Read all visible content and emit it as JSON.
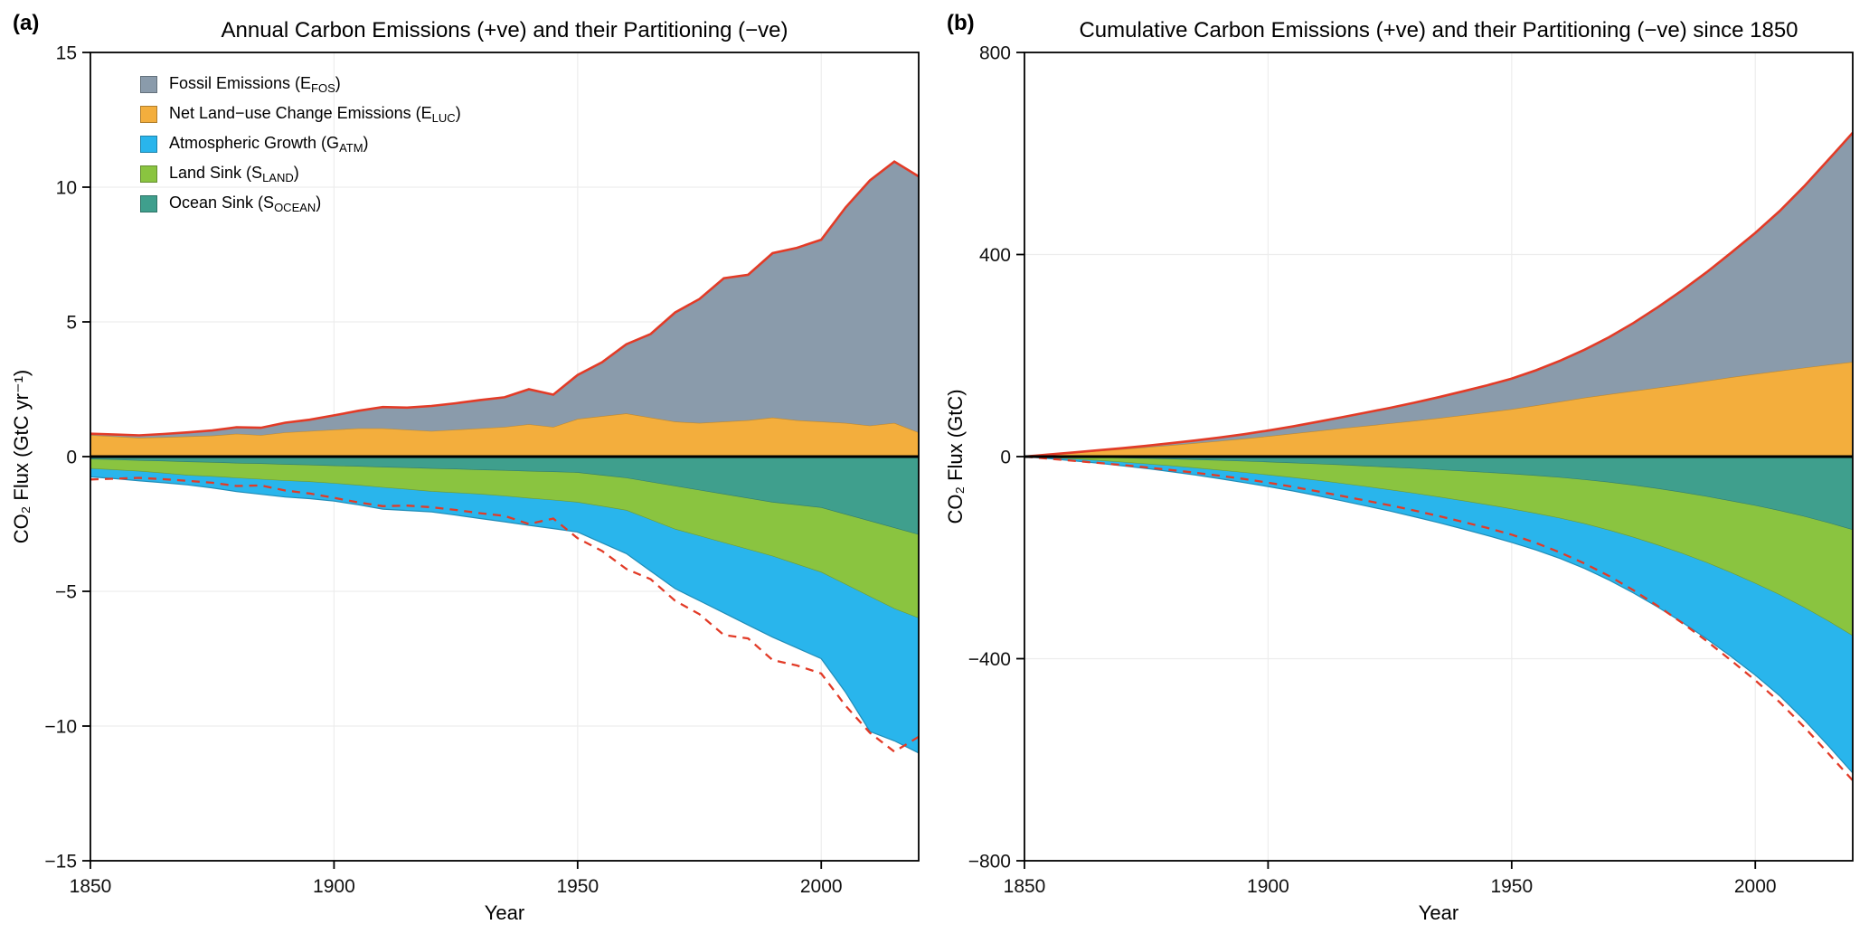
{
  "figure": {
    "panel_a_tag": "(a)",
    "panel_b_tag": "(b)",
    "background": "#ffffff"
  },
  "colors": {
    "fossil": "#8a9bab",
    "luc": "#f3ae3d",
    "atm": "#29b5ec",
    "land": "#8ac440",
    "ocean": "#3f9f8d",
    "total": "#e23b27",
    "axis": "#000000",
    "grid": "#ededed"
  },
  "legend": {
    "items": [
      {
        "key": "fossil",
        "pre": "Fossil Emissions (E",
        "sub": "FOS",
        "post": ")"
      },
      {
        "key": "luc",
        "pre": "Net Land−use Change Emissions (E",
        "sub": "LUC",
        "post": ")"
      },
      {
        "key": "atm",
        "pre": "Atmospheric Growth (G",
        "sub": "ATM",
        "post": ")"
      },
      {
        "key": "land",
        "pre": "Land Sink (S",
        "sub": "LAND",
        "post": ")"
      },
      {
        "key": "ocean",
        "pre": "Ocean Sink (S",
        "sub": "OCEAN",
        "post": ")"
      }
    ]
  },
  "chart_data": [
    {
      "id": "annual",
      "type": "area",
      "title": "Annual Carbon Emissions (+ve) and their Partitioning (−ve)",
      "xlabel": "Year",
      "ylabel": "CO₂ Flux (GtC yr⁻¹)",
      "xlim": [
        1850,
        2020
      ],
      "ylim": [
        -15,
        15
      ],
      "xticks": [
        1850,
        1900,
        1950,
        2000
      ],
      "yticks": [
        -15,
        -10,
        -5,
        0,
        5,
        10,
        15
      ],
      "grid": true,
      "legend_position": "top-left",
      "positive_stack": [
        "luc",
        "fossil"
      ],
      "negative_stack": [
        "ocean",
        "land",
        "atm"
      ],
      "lines": {
        "solid_red": "total emissions (E_FOS + E_LUC)",
        "dashed_red": "total emissions mirrored negative"
      },
      "years": [
        1850,
        1855,
        1860,
        1865,
        1870,
        1875,
        1880,
        1885,
        1890,
        1895,
        1900,
        1905,
        1910,
        1915,
        1920,
        1925,
        1930,
        1935,
        1940,
        1945,
        1950,
        1955,
        1960,
        1965,
        1970,
        1975,
        1980,
        1985,
        1990,
        1995,
        2000,
        2005,
        2010,
        2015,
        2020
      ],
      "series": {
        "fossil": [
          0.05,
          0.07,
          0.09,
          0.12,
          0.15,
          0.19,
          0.24,
          0.27,
          0.36,
          0.42,
          0.53,
          0.65,
          0.79,
          0.82,
          0.93,
          0.98,
          1.05,
          1.1,
          1.3,
          1.2,
          1.63,
          2.0,
          2.57,
          3.1,
          4.05,
          4.6,
          5.32,
          5.4,
          6.1,
          6.4,
          6.75,
          8.0,
          9.1,
          9.7,
          9.5
        ],
        "luc": [
          0.8,
          0.75,
          0.7,
          0.72,
          0.75,
          0.78,
          0.85,
          0.8,
          0.9,
          0.95,
          1.0,
          1.05,
          1.05,
          1.0,
          0.95,
          1.0,
          1.05,
          1.1,
          1.2,
          1.1,
          1.4,
          1.5,
          1.6,
          1.45,
          1.3,
          1.25,
          1.3,
          1.35,
          1.45,
          1.35,
          1.3,
          1.25,
          1.15,
          1.25,
          0.9
        ],
        "atm": [
          0.3,
          0.32,
          0.35,
          0.35,
          0.35,
          0.42,
          0.5,
          0.55,
          0.6,
          0.62,
          0.65,
          0.72,
          0.8,
          0.78,
          0.75,
          0.82,
          0.9,
          0.95,
          1.0,
          1.05,
          1.1,
          1.35,
          1.6,
          1.9,
          2.2,
          2.4,
          2.6,
          2.8,
          3.0,
          3.1,
          3.2,
          4.0,
          5.0,
          4.9,
          5.0
        ],
        "land": [
          0.35,
          0.38,
          0.4,
          0.45,
          0.5,
          0.52,
          0.55,
          0.58,
          0.6,
          0.62,
          0.65,
          0.7,
          0.75,
          0.8,
          0.85,
          0.88,
          0.9,
          0.95,
          1.0,
          1.05,
          1.1,
          1.15,
          1.2,
          1.4,
          1.6,
          1.7,
          1.8,
          1.9,
          2.0,
          2.2,
          2.4,
          2.6,
          2.8,
          3.0,
          3.1
        ],
        "ocean": [
          0.1,
          0.12,
          0.15,
          0.17,
          0.2,
          0.22,
          0.25,
          0.27,
          0.3,
          0.32,
          0.35,
          0.37,
          0.4,
          0.42,
          0.45,
          0.47,
          0.5,
          0.52,
          0.55,
          0.57,
          0.6,
          0.7,
          0.8,
          0.95,
          1.1,
          1.25,
          1.4,
          1.55,
          1.7,
          1.8,
          1.9,
          2.15,
          2.4,
          2.65,
          2.9
        ]
      },
      "total": [
        0.85,
        0.82,
        0.79,
        0.84,
        0.9,
        0.97,
        1.09,
        1.07,
        1.26,
        1.37,
        1.53,
        1.7,
        1.84,
        1.82,
        1.88,
        1.98,
        2.1,
        2.2,
        2.5,
        2.3,
        3.03,
        3.5,
        4.17,
        4.55,
        5.35,
        5.85,
        6.62,
        6.75,
        7.55,
        7.75,
        8.05,
        9.25,
        10.25,
        10.95,
        10.4
      ]
    },
    {
      "id": "cumulative",
      "type": "area",
      "title": "Cumulative Carbon Emissions (+ve) and their Partitioning (−ve) since 1850",
      "xlabel": "Year",
      "ylabel": "CO₂ Flux (GtC)",
      "xlim": [
        1850,
        2020
      ],
      "ylim": [
        -800,
        800
      ],
      "xticks": [
        1850,
        1900,
        1950,
        2000
      ],
      "yticks": [
        -800,
        -400,
        0,
        400,
        800
      ],
      "grid": true,
      "legend_position": "none",
      "positive_stack": [
        "luc",
        "fossil"
      ],
      "negative_stack": [
        "ocean",
        "land",
        "atm"
      ],
      "lines": {
        "solid_red": "cumulative total emissions (E_FOS + E_LUC)",
        "dashed_red": "cumulative total emissions mirrored negative"
      },
      "years": [
        1850,
        1855,
        1860,
        1865,
        1870,
        1875,
        1880,
        1885,
        1890,
        1895,
        1900,
        1905,
        1910,
        1915,
        1920,
        1925,
        1930,
        1935,
        1940,
        1945,
        1950,
        1955,
        1960,
        1965,
        1970,
        1975,
        1980,
        1985,
        1990,
        1995,
        2000,
        2005,
        2010,
        2015,
        2020
      ],
      "series": {
        "fossil": [
          0,
          0.3,
          0.7,
          1.2,
          1.9,
          2.8,
          3.8,
          5.1,
          6.7,
          8.6,
          11.0,
          14.0,
          17.6,
          21.6,
          26.0,
          30.7,
          35.8,
          41.2,
          47.2,
          53.4,
          60.5,
          69.6,
          81.0,
          95.2,
          113.1,
          134.7,
          159.5,
          186.3,
          215.0,
          246.3,
          279.2,
          316.0,
          358.8,
          405.8,
          453.8
        ],
        "luc": [
          0,
          3.9,
          7.5,
          11.1,
          14.7,
          18.6,
          22.6,
          26.8,
          31.0,
          35.6,
          40.5,
          45.6,
          50.9,
          56.0,
          60.9,
          65.8,
          70.9,
          76.3,
          82.0,
          87.8,
          94.0,
          101.3,
          109.0,
          116.6,
          123.5,
          129.9,
          136.3,
          142.9,
          149.9,
          156.9,
          163.5,
          169.9,
          175.9,
          181.9,
          187.3
        ],
        "atm": [
          0,
          1.6,
          3.2,
          5.0,
          6.7,
          8.7,
          11.0,
          13.6,
          16.5,
          19.5,
          22.7,
          26.1,
          29.9,
          33.9,
          37.7,
          41.6,
          45.9,
          50.5,
          55.4,
          60.5,
          65.9,
          72.0,
          79.4,
          88.1,
          98.4,
          109.9,
          122.4,
          135.9,
          150.4,
          165.6,
          181.4,
          199.4,
          221.9,
          246.6,
          271.4
        ],
        "land": [
          0,
          1.8,
          3.8,
          5.9,
          8.3,
          10.8,
          13.5,
          16.3,
          19.3,
          22.3,
          25.5,
          28.9,
          32.5,
          36.4,
          40.5,
          44.8,
          49.3,
          53.9,
          58.8,
          63.9,
          69.3,
          74.9,
          80.8,
          87.3,
          94.8,
          103.0,
          111.8,
          121.0,
          131.0,
          142.0,
          154.0,
          166.5,
          180.0,
          194.5,
          209.8
        ],
        "ocean": [
          0,
          0.6,
          1.2,
          2.0,
          3.0,
          4.0,
          5.2,
          6.5,
          7.9,
          9.5,
          11.1,
          12.9,
          14.8,
          16.9,
          19.1,
          21.4,
          23.8,
          26.4,
          29.0,
          31.8,
          34.7,
          38.0,
          41.7,
          46.1,
          51.2,
          57.1,
          63.7,
          71.1,
          79.2,
          88.0,
          97.2,
          107.4,
          118.7,
          131.4,
          145.2
        ]
      },
      "total": [
        0,
        4.2,
        8.2,
        12.3,
        16.6,
        21.3,
        26.4,
        31.9,
        37.7,
        44.2,
        51.5,
        59.6,
        68.5,
        77.6,
        86.9,
        96.5,
        106.7,
        117.5,
        129.2,
        141.2,
        154.5,
        170.9,
        190.0,
        211.8,
        236.5,
        264.6,
        295.8,
        329.2,
        364.9,
        403.2,
        442.7,
        486.0,
        534.7,
        587.7,
        641.1
      ]
    }
  ]
}
